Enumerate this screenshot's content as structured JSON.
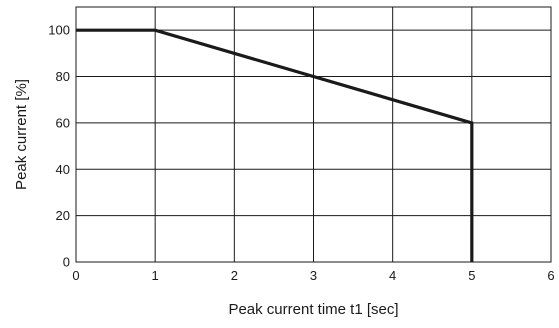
{
  "chart_data": {
    "type": "line",
    "title": "",
    "xlabel": "Peak current time t1 [sec]",
    "ylabel": "Peak current [%]",
    "xlim": [
      0,
      6
    ],
    "ylim": [
      0,
      110
    ],
    "x_ticks": [
      0,
      1,
      2,
      3,
      4,
      5,
      6
    ],
    "y_ticks": [
      0,
      20,
      40,
      60,
      80,
      100
    ],
    "x_tick_labels": [
      "0",
      "1",
      "2",
      "3",
      "4",
      "5",
      "6"
    ],
    "y_tick_labels": [
      "0",
      "20",
      "40",
      "60",
      "80",
      "100"
    ],
    "grid": true,
    "legend": "none",
    "series": [
      {
        "x": [
          0,
          1,
          5,
          5
        ],
        "y": [
          100,
          100,
          60,
          0
        ],
        "color": "#1a1a1a"
      }
    ]
  }
}
